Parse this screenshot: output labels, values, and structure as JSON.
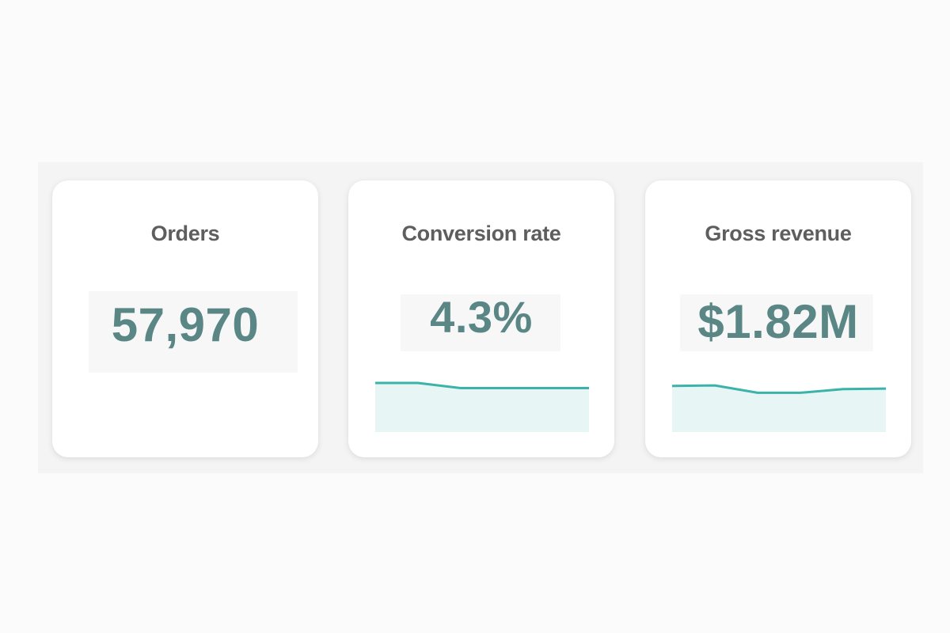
{
  "colors": {
    "accent": "#3bb3aa",
    "value_text": "#5a8785",
    "title_text": "#5e5e5e",
    "spark_fill": "#e7f5f4"
  },
  "cards": [
    {
      "title": "Orders",
      "value": "57,970"
    },
    {
      "title": "Conversion rate",
      "value": "4.3%"
    },
    {
      "title": "Gross revenue",
      "value": "$1.82M"
    }
  ],
  "chart_data": [
    {
      "type": "area",
      "values": [
        1.0,
        1.0,
        0.79,
        0.79,
        0.79,
        0.79
      ]
    },
    {
      "type": "area",
      "values": [
        0.88,
        0.9,
        0.6,
        0.6,
        0.75,
        0.77
      ]
    }
  ]
}
